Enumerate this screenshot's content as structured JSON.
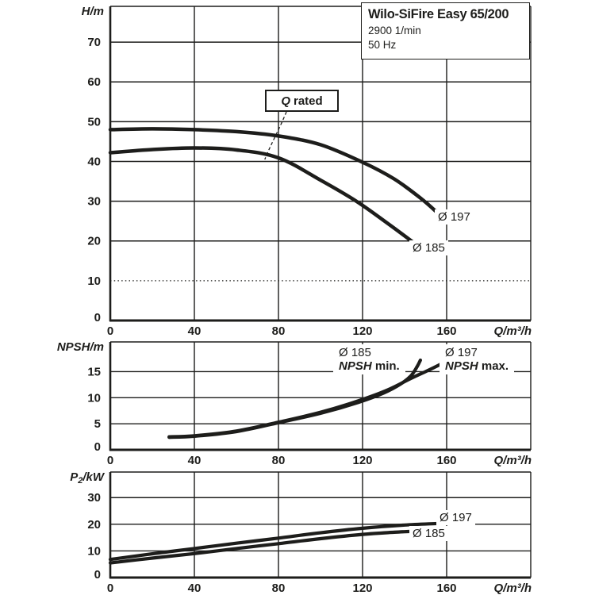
{
  "header": {
    "title": "Wilo-SiFire Easy 65/200",
    "speed": "2900 1/min",
    "frequency": "50 Hz"
  },
  "annotations": {
    "q_rated": {
      "symbol": "Q",
      "text": "rated",
      "points_to_q": 73.5,
      "points_to_h": 40.5
    },
    "head": {
      "d197": "Ø 197",
      "d185": "Ø 185"
    },
    "npsh": {
      "min": {
        "diameter": "Ø 185",
        "acronym": "NPSH",
        "qualifier": "min."
      },
      "max": {
        "diameter": "Ø 197",
        "acronym": "NPSH",
        "qualifier": "max."
      }
    },
    "power": {
      "d197": "Ø 197",
      "d185": "Ø 185"
    }
  },
  "colors": {
    "ink": "#1d1d1b",
    "background": "#ffffff"
  },
  "chart_data": [
    {
      "id": "head",
      "type": "line",
      "title": "Pump head curves",
      "ylabel": "H/m",
      "xlabel": "Q/m³/h",
      "xlim": [
        0,
        200
      ],
      "ylim": [
        0,
        79
      ],
      "xticks": [
        0,
        40,
        80,
        120,
        160
      ],
      "yticks": [
        0,
        10,
        20,
        30,
        40,
        50,
        60,
        70
      ],
      "grid": true,
      "dotted_gridline_y": 10,
      "legend_position": "on-curve",
      "series": [
        {
          "name": "Ø 197",
          "points": [
            [
              0,
              48.0
            ],
            [
              20,
              48.2
            ],
            [
              40,
              48.0
            ],
            [
              60,
              47.5
            ],
            [
              80,
              46.4
            ],
            [
              100,
              44.2
            ],
            [
              120,
              39.8
            ],
            [
              135,
              35.6
            ],
            [
              148,
              30.6
            ],
            [
              156,
              26.9
            ]
          ]
        },
        {
          "name": "Ø 185",
          "points": [
            [
              0,
              42.2
            ],
            [
              20,
              43.0
            ],
            [
              40,
              43.4
            ],
            [
              60,
              42.9
            ],
            [
              80,
              40.9
            ],
            [
              100,
              35.3
            ],
            [
              117,
              30.0
            ],
            [
              132,
              24.4
            ],
            [
              144,
              19.7
            ]
          ]
        }
      ]
    },
    {
      "id": "npsh",
      "type": "line",
      "title": "NPSH curves",
      "ylabel": "NPSH/m",
      "xlabel": "Q/m³/h",
      "xlim": [
        0,
        200
      ],
      "ylim": [
        0,
        20.7
      ],
      "xticks": [
        0,
        40,
        80,
        120,
        160
      ],
      "yticks": [
        0,
        5,
        10,
        15
      ],
      "grid": true,
      "legend_position": "on-curve",
      "series": [
        {
          "name": "Ø 185 NPSH min.",
          "points": [
            [
              28,
              2.4
            ],
            [
              40,
              2.6
            ],
            [
              60,
              3.5
            ],
            [
              80,
              5.2
            ],
            [
              100,
              7.0
            ],
            [
              118,
              9.1
            ],
            [
              130,
              10.9
            ],
            [
              138,
              12.6
            ],
            [
              143,
              14.2
            ],
            [
              146,
              16.0
            ],
            [
              147.5,
              17.2
            ]
          ]
        },
        {
          "name": "Ø 197 NPSH max.",
          "points": [
            [
              28,
              2.5
            ],
            [
              40,
              2.7
            ],
            [
              60,
              3.6
            ],
            [
              80,
              5.3
            ],
            [
              100,
              7.2
            ],
            [
              118,
              9.4
            ],
            [
              132,
              11.5
            ],
            [
              143,
              13.7
            ],
            [
              151,
              15.2
            ],
            [
              157,
              16.4
            ]
          ]
        }
      ]
    },
    {
      "id": "power",
      "type": "line",
      "title": "Shaft power curves",
      "ylabel": "P₂/kW",
      "xlabel": "Q/m³/h",
      "xlim": [
        0,
        200
      ],
      "ylim": [
        0,
        39.6
      ],
      "xticks": [
        0,
        40,
        80,
        120,
        160
      ],
      "yticks": [
        0,
        10,
        20,
        30
      ],
      "grid": true,
      "legend_position": "on-curve",
      "series": [
        {
          "name": "Ø 197",
          "points": [
            [
              0,
              6.8
            ],
            [
              20,
              8.9
            ],
            [
              40,
              10.9
            ],
            [
              60,
              12.9
            ],
            [
              80,
              14.8
            ],
            [
              100,
              16.8
            ],
            [
              120,
              18.5
            ],
            [
              140,
              19.7
            ],
            [
              156,
              20.3
            ]
          ]
        },
        {
          "name": "Ø 185",
          "points": [
            [
              0,
              5.5
            ],
            [
              20,
              7.3
            ],
            [
              40,
              9.0
            ],
            [
              60,
              10.9
            ],
            [
              80,
              12.7
            ],
            [
              100,
              14.6
            ],
            [
              120,
              16.2
            ],
            [
              135,
              17.0
            ],
            [
              146,
              17.4
            ]
          ]
        }
      ]
    }
  ]
}
